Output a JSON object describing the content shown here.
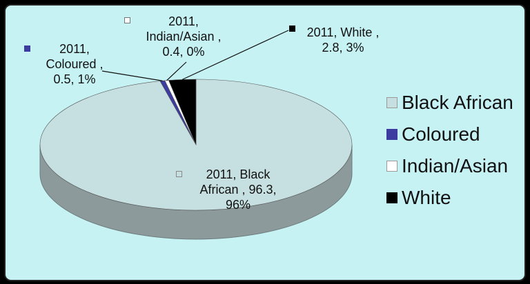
{
  "chart_data": {
    "type": "pie",
    "style": "3d",
    "slices": [
      {
        "label": "2011, Black African , 96.3, 96%",
        "category": "Black African",
        "value": 96.3,
        "percent": 96,
        "color": "#c6dfe0"
      },
      {
        "label": "2011, Coloured , 0.5, 1%",
        "category": "Coloured",
        "value": 0.5,
        "percent": 1,
        "color": "#3b3ba0"
      },
      {
        "label": "2011, Indian/Asian , 0.4, 0%",
        "category": "Indian/Asian",
        "value": 0.4,
        "percent": 0,
        "color": "#ffffff"
      },
      {
        "label": "2011, White , 2.8, 3%",
        "category": "White",
        "value": 2.8,
        "percent": 3,
        "color": "#000000"
      }
    ],
    "legend": {
      "position": "right",
      "items": [
        "Black African",
        "Coloured",
        "Indian/Asian",
        "White"
      ]
    }
  },
  "labels": {
    "black": "2011, Black\nAfrican , 96.3,\n96%",
    "coloured": "2011,\nColoured ,\n0.5, 1%",
    "indian": "2011,\nIndian/Asian ,\n0.4, 0%",
    "white": "2011, White ,\n2.8, 3%"
  },
  "colors": {
    "background": "#c6f2f4",
    "pie_top": "#c6dfe0",
    "pie_side": "#8c9a9b"
  }
}
